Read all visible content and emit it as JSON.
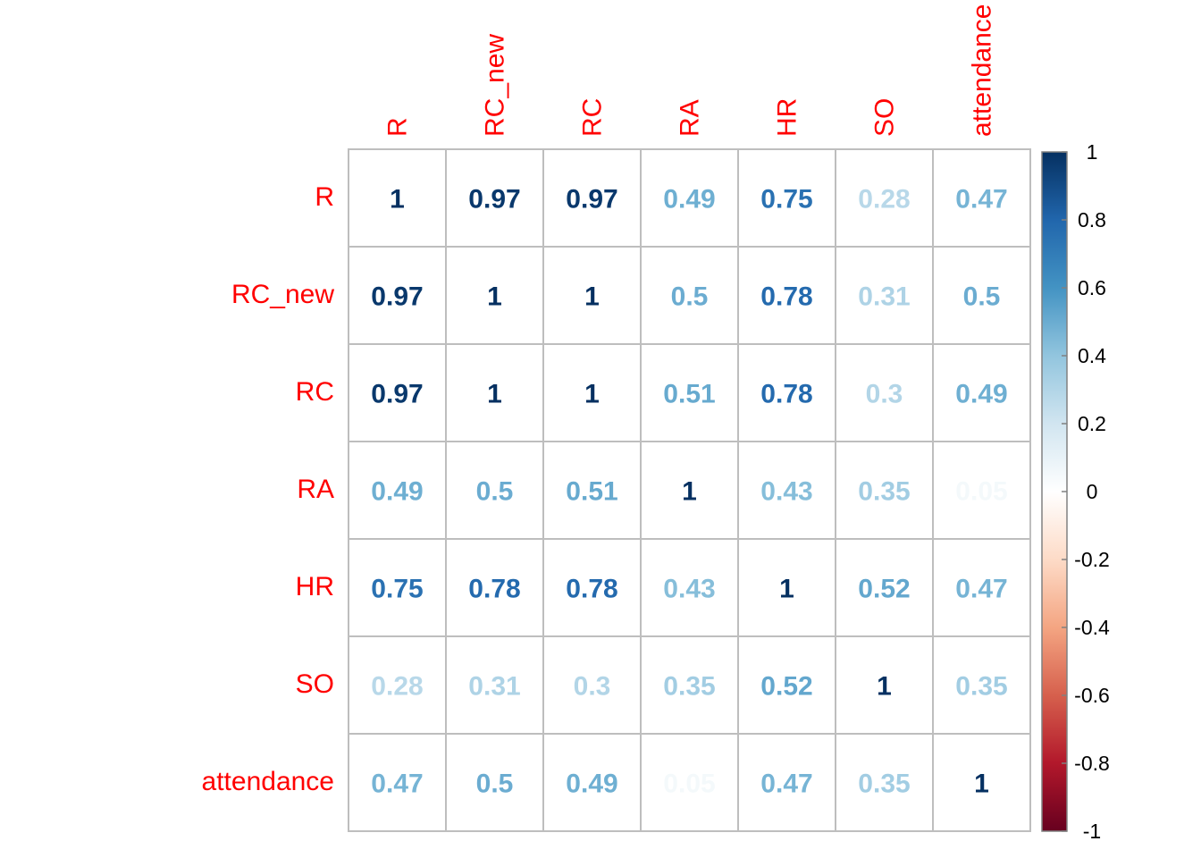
{
  "chart_data": {
    "type": "heatmap",
    "variables": [
      "R",
      "RC_new",
      "RC",
      "RA",
      "HR",
      "SO",
      "attendance"
    ],
    "matrix": [
      [
        1,
        0.97,
        0.97,
        0.49,
        0.75,
        0.28,
        0.47
      ],
      [
        0.97,
        1,
        1,
        0.5,
        0.78,
        0.31,
        0.5
      ],
      [
        0.97,
        1,
        1,
        0.51,
        0.78,
        0.3,
        0.49
      ],
      [
        0.49,
        0.5,
        0.51,
        1,
        0.43,
        0.35,
        0.05
      ],
      [
        0.75,
        0.78,
        0.78,
        0.43,
        1,
        0.52,
        0.47
      ],
      [
        0.28,
        0.31,
        0.3,
        0.35,
        0.52,
        1,
        0.35
      ],
      [
        0.47,
        0.5,
        0.49,
        0.05,
        0.47,
        0.35,
        1
      ]
    ],
    "value_range": [
      -1,
      1
    ],
    "colorbar_ticks": [
      "1",
      "0.8",
      "0.6",
      "0.4",
      "0.2",
      "0",
      "-0.2",
      "-0.4",
      "-0.6",
      "-0.8",
      "-1"
    ],
    "label_color": "#FF0000",
    "grid_color": "#BEBEBE",
    "colormap": [
      "#67001F",
      "#B2182B",
      "#D6604D",
      "#F4A582",
      "#FDDBC7",
      "#FFFFFF",
      "#D1E5F0",
      "#92C5DE",
      "#4393C3",
      "#2166AC",
      "#053061"
    ],
    "legend_position": "right",
    "xlabel": "",
    "ylabel": ""
  }
}
